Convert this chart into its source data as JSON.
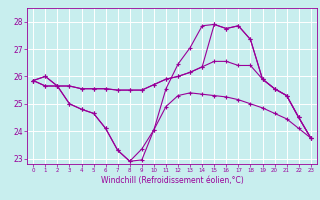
{
  "xlabel": "Windchill (Refroidissement éolien,°C)",
  "ylabel": "",
  "bg_color": "#c8eeee",
  "line_color": "#990099",
  "grid_color": "#ffffff",
  "xlim": [
    -0.5,
    23.5
  ],
  "ylim": [
    22.8,
    28.5
  ],
  "xticks": [
    0,
    1,
    2,
    3,
    4,
    5,
    6,
    7,
    8,
    9,
    10,
    11,
    12,
    13,
    14,
    15,
    16,
    17,
    18,
    19,
    20,
    21,
    22,
    23
  ],
  "yticks": [
    23,
    24,
    25,
    26,
    27,
    28
  ],
  "lines": [
    {
      "x": [
        0,
        1,
        2,
        3,
        4,
        5,
        6,
        7,
        8,
        9,
        10,
        11,
        12,
        13,
        14,
        15,
        16,
        17,
        18,
        19,
        20,
        21,
        22,
        23
      ],
      "y": [
        25.85,
        26.0,
        25.65,
        25.65,
        25.55,
        25.55,
        25.55,
        25.5,
        25.5,
        25.5,
        25.7,
        25.9,
        26.0,
        26.15,
        26.35,
        26.55,
        26.55,
        26.4,
        26.4,
        25.9,
        25.55,
        25.3,
        24.5,
        23.75
      ]
    },
    {
      "x": [
        0,
        1,
        2,
        3,
        4,
        5,
        6,
        7,
        8,
        9,
        10,
        11,
        12,
        13,
        14,
        15,
        16,
        17,
        18,
        19,
        20,
        21,
        22,
        23
      ],
      "y": [
        25.85,
        25.65,
        25.65,
        25.0,
        24.8,
        24.65,
        24.1,
        23.3,
        22.9,
        22.95,
        24.05,
        24.9,
        25.3,
        25.4,
        25.35,
        25.3,
        25.25,
        25.15,
        25.0,
        24.85,
        24.65,
        24.45,
        24.1,
        23.75
      ]
    },
    {
      "x": [
        0,
        1,
        2,
        3,
        4,
        5,
        6,
        7,
        8,
        9,
        10,
        11,
        12,
        13,
        14,
        15,
        16,
        17,
        18,
        19,
        20,
        21,
        22,
        23
      ],
      "y": [
        25.85,
        25.65,
        25.65,
        25.0,
        24.8,
        24.65,
        24.1,
        23.3,
        22.9,
        23.35,
        24.05,
        25.55,
        26.45,
        27.05,
        27.85,
        27.9,
        27.75,
        27.85,
        27.35,
        25.9,
        25.55,
        25.3,
        24.5,
        23.75
      ]
    },
    {
      "x": [
        0,
        1,
        2,
        3,
        4,
        5,
        6,
        7,
        8,
        9,
        10,
        11,
        12,
        13,
        14,
        15,
        16,
        17,
        18,
        19,
        20,
        21,
        22,
        23
      ],
      "y": [
        25.85,
        26.0,
        25.65,
        25.65,
        25.55,
        25.55,
        25.55,
        25.5,
        25.5,
        25.5,
        25.7,
        25.9,
        26.0,
        26.15,
        26.35,
        27.9,
        27.75,
        27.85,
        27.35,
        25.9,
        25.55,
        25.3,
        24.5,
        23.75
      ]
    }
  ],
  "fig_width": 3.2,
  "fig_height": 2.0,
  "dpi": 100,
  "xtick_fontsize": 4.0,
  "ytick_fontsize": 5.5,
  "xlabel_fontsize": 5.5,
  "marker_size": 2.5,
  "line_width": 0.8
}
